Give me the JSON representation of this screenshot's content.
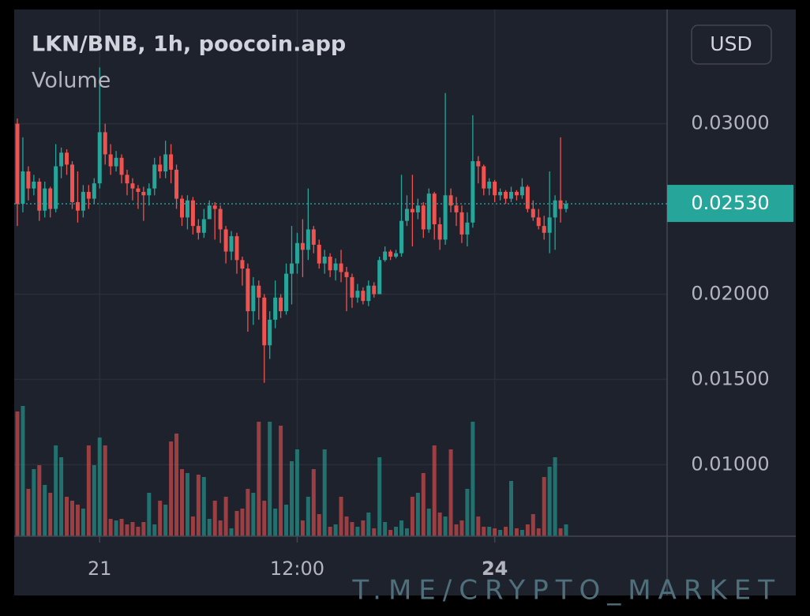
{
  "chart_data": {
    "type": "candlestick",
    "title": "LKN/BNB, 1h, poocoin.app",
    "subtitle": "Volume",
    "currency": "USD",
    "watermark": "T.ME/CRYPTO_MARKET",
    "up_color": "#26a69a",
    "down_color": "#ef5350",
    "categories": [
      null,
      null,
      null,
      null,
      null,
      null,
      null,
      null,
      null,
      null,
      null,
      null,
      null,
      null,
      null,
      "21",
      null,
      null,
      null,
      null,
      null,
      null,
      null,
      null,
      null,
      null,
      null,
      null,
      null,
      null,
      null,
      null,
      null,
      null,
      null,
      null,
      null,
      null,
      null,
      null,
      null,
      null,
      null,
      null,
      null,
      null,
      null,
      null,
      null,
      null,
      null,
      "12:00",
      null,
      null,
      null,
      null,
      null,
      null,
      null,
      null,
      null,
      null,
      null,
      null,
      null,
      null,
      null,
      null,
      null,
      null,
      null,
      null,
      null,
      null,
      null,
      null,
      null,
      null,
      null,
      null,
      null,
      null,
      null,
      null,
      null,
      null,
      null,
      "24",
      null,
      null,
      null,
      null,
      null,
      null,
      null,
      null,
      null,
      null,
      null,
      null,
      null
    ],
    "open": [
      0.03,
      0.0253,
      0.0272,
      0.0262,
      0.0266,
      0.0249,
      0.0262,
      0.025,
      0.0275,
      0.0283,
      0.0276,
      0.0254,
      0.0249,
      0.026,
      0.0256,
      0.0265,
      0.0295,
      0.0282,
      0.0275,
      0.028,
      0.027,
      0.0265,
      0.0262,
      0.026,
      0.0258,
      0.0262,
      0.0276,
      0.0272,
      0.0282,
      0.0273,
      0.0256,
      0.0245,
      0.0255,
      0.024,
      0.0236,
      0.0244,
      0.0252,
      0.025,
      0.0238,
      0.0225,
      0.0234,
      0.022,
      0.0215,
      0.019,
      0.0205,
      0.0198,
      0.017,
      0.0185,
      0.0198,
      0.019,
      0.0212,
      0.0218,
      0.023,
      0.0226,
      0.0238,
      0.0229,
      0.0218,
      0.0222,
      0.0214,
      0.0218,
      0.0213,
      0.021,
      0.0198,
      0.0202,
      0.0196,
      0.0205,
      0.02,
      0.022,
      0.0225,
      0.0222,
      0.0224,
      0.0243,
      0.025,
      0.0248,
      0.0252,
      0.0238,
      0.0259,
      0.0241,
      0.0232,
      0.0258,
      0.0252,
      0.0248,
      0.0235,
      0.0242,
      0.0278,
      0.0275,
      0.0262,
      0.0266,
      0.0258,
      0.026,
      0.0256,
      0.026,
      0.0258,
      0.0263,
      0.025,
      0.0245,
      0.024,
      0.0236,
      0.0245,
      0.0255,
      0.025
    ],
    "high": [
      0.0303,
      0.0292,
      0.0275,
      0.027,
      0.0268,
      0.0266,
      0.0263,
      0.0288,
      0.0286,
      0.0285,
      0.0278,
      0.0272,
      0.0264,
      0.0264,
      0.0268,
      0.0333,
      0.03,
      0.0288,
      0.0284,
      0.0282,
      0.0273,
      0.0268,
      0.0264,
      0.0263,
      0.0265,
      0.028,
      0.0281,
      0.029,
      0.0288,
      0.0276,
      0.0258,
      0.0258,
      0.0257,
      0.0244,
      0.025,
      0.0255,
      0.0254,
      0.0252,
      0.024,
      0.0237,
      0.0236,
      0.0222,
      0.0218,
      0.021,
      0.0208,
      0.02,
      0.019,
      0.0208,
      0.02,
      0.0218,
      0.024,
      0.0236,
      0.0244,
      0.0262,
      0.024,
      0.0232,
      0.0226,
      0.0224,
      0.0221,
      0.0226,
      0.0216,
      0.0212,
      0.0206,
      0.0204,
      0.0208,
      0.0207,
      0.0222,
      0.0228,
      0.0226,
      0.0226,
      0.027,
      0.0258,
      0.027,
      0.0256,
      0.0254,
      0.0262,
      0.026,
      0.0245,
      0.0318,
      0.0262,
      0.0257,
      0.0252,
      0.0248,
      0.0305,
      0.0281,
      0.0276,
      0.0268,
      0.0267,
      0.0262,
      0.0261,
      0.0263,
      0.0261,
      0.0268,
      0.0264,
      0.0255,
      0.025,
      0.0246,
      0.0272,
      0.0258,
      0.0292,
      0.0255
    ],
    "low": [
      0.024,
      0.0248,
      0.0255,
      0.0258,
      0.0243,
      0.0245,
      0.0245,
      0.0248,
      0.0268,
      0.027,
      0.025,
      0.0242,
      0.0245,
      0.025,
      0.0253,
      0.0262,
      0.0276,
      0.027,
      0.0272,
      0.0265,
      0.0258,
      0.0255,
      0.025,
      0.0243,
      0.0252,
      0.0258,
      0.0268,
      0.0268,
      0.0265,
      0.025,
      0.024,
      0.0238,
      0.0235,
      0.0232,
      0.0233,
      0.0244,
      0.0232,
      0.023,
      0.0218,
      0.022,
      0.0212,
      0.0205,
      0.0178,
      0.0182,
      0.0185,
      0.0148,
      0.0162,
      0.018,
      0.0186,
      0.0188,
      0.0194,
      0.0212,
      0.021,
      0.022,
      0.0224,
      0.0215,
      0.0212,
      0.021,
      0.0208,
      0.0207,
      0.019,
      0.0192,
      0.0195,
      0.0194,
      0.0193,
      0.0198,
      0.02,
      0.0219,
      0.022,
      0.0221,
      0.0222,
      0.024,
      0.0228,
      0.0244,
      0.0233,
      0.0236,
      0.0232,
      0.0226,
      0.0229,
      0.0248,
      0.024,
      0.023,
      0.0228,
      0.0239,
      0.0265,
      0.0258,
      0.0258,
      0.0254,
      0.0255,
      0.0253,
      0.0254,
      0.0255,
      0.0256,
      0.0248,
      0.0243,
      0.0238,
      0.0232,
      0.0224,
      0.0226,
      0.0242,
      0.0248
    ],
    "close": [
      0.0253,
      0.0272,
      0.0262,
      0.0266,
      0.0249,
      0.0262,
      0.025,
      0.0275,
      0.0283,
      0.0276,
      0.0254,
      0.0249,
      0.026,
      0.0256,
      0.0265,
      0.0295,
      0.0282,
      0.0275,
      0.028,
      0.027,
      0.0265,
      0.0262,
      0.026,
      0.0258,
      0.0262,
      0.0276,
      0.0272,
      0.0282,
      0.0273,
      0.0256,
      0.0245,
      0.0255,
      0.024,
      0.0236,
      0.0244,
      0.0252,
      0.025,
      0.0238,
      0.0225,
      0.0234,
      0.022,
      0.0215,
      0.019,
      0.0205,
      0.0198,
      0.017,
      0.0185,
      0.0198,
      0.019,
      0.0212,
      0.0218,
      0.023,
      0.0226,
      0.0238,
      0.0229,
      0.0218,
      0.0222,
      0.0214,
      0.0218,
      0.0213,
      0.021,
      0.0198,
      0.0202,
      0.0196,
      0.0205,
      0.02,
      0.022,
      0.0225,
      0.0222,
      0.0224,
      0.0243,
      0.025,
      0.0248,
      0.0252,
      0.0238,
      0.0259,
      0.0241,
      0.0232,
      0.0258,
      0.0252,
      0.0248,
      0.0235,
      0.0242,
      0.0278,
      0.0275,
      0.0262,
      0.0266,
      0.0258,
      0.026,
      0.0256,
      0.026,
      0.0258,
      0.0263,
      0.025,
      0.0245,
      0.024,
      0.0236,
      0.0245,
      0.0255,
      0.025,
      0.0253
    ],
    "volume": [
      158,
      165,
      60,
      85,
      90,
      65,
      55,
      115,
      100,
      50,
      45,
      40,
      35,
      115,
      90,
      125,
      115,
      22,
      20,
      22,
      15,
      18,
      12,
      18,
      55,
      15,
      45,
      40,
      120,
      130,
      85,
      80,
      25,
      78,
      75,
      22,
      45,
      20,
      50,
      10,
      32,
      35,
      60,
      55,
      145,
      45,
      145,
      35,
      140,
      40,
      95,
      110,
      20,
      50,
      85,
      28,
      110,
      12,
      15,
      50,
      25,
      18,
      12,
      20,
      30,
      10,
      100,
      18,
      8,
      12,
      20,
      10,
      50,
      55,
      80,
      35,
      115,
      30,
      25,
      110,
      15,
      20,
      60,
      145,
      25,
      12,
      12,
      10,
      8,
      12,
      70,
      10,
      8,
      15,
      28,
      10,
      75,
      88,
      100,
      10,
      15
    ],
    "last_price": {
      "value": 0.0253,
      "label": "0.02530"
    },
    "ylim": [
      0.0058,
      0.0367
    ],
    "yticks": [
      {
        "value": 0.01,
        "label": "0.01000"
      },
      {
        "value": 0.015,
        "label": "0.01500"
      },
      {
        "value": 0.02,
        "label": "0.02000"
      },
      {
        "value": 0.03,
        "label": "0.03000"
      }
    ],
    "grid": true
  }
}
